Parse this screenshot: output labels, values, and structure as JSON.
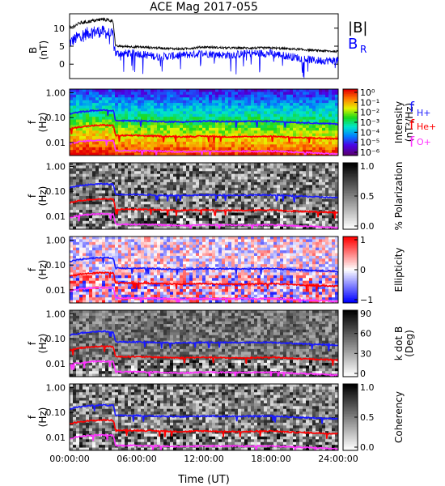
{
  "title": "ACE Mag 2017-055",
  "xaxis": {
    "label": "Time (UT)",
    "ticks": [
      "00:00:00",
      "06:00:00",
      "12:00:00",
      "18:00:00",
      "24:00:00"
    ],
    "hours": [
      0,
      6,
      12,
      18,
      24
    ]
  },
  "panel_b": {
    "ylabel_line1": "B",
    "ylabel_line2": "(nT)",
    "ticks": [
      "10",
      "5",
      "0"
    ],
    "legend_B": "|B|",
    "legend_BR_main": "B",
    "legend_BR_sub": "R",
    "colors": {
      "B": "#000000",
      "BR": "#0000ff"
    }
  },
  "freq_ylabel": {
    "line1": "f",
    "line2": "(Hz)"
  },
  "freq_ticks": [
    "1.00",
    "0.10",
    "0.01"
  ],
  "gyro_legend": [
    {
      "main": "f",
      "sub": "H+",
      "color": "#1a1aff"
    },
    {
      "main": "f",
      "sub": "He+",
      "color": "#ff0000"
    },
    {
      "main": "f",
      "sub": "O+",
      "color": "#ff33ff"
    }
  ],
  "spectro_panels": [
    {
      "key": "intensity",
      "scheme": "rainbow",
      "bar_ticks": [
        "10⁰",
        "10⁻¹",
        "10⁻²",
        "10⁻³",
        "10⁻⁴",
        "10⁻⁵",
        "10⁻⁶"
      ],
      "bar_label_1": "Intensity",
      "bar_label_2": "(nT²/Hz)"
    },
    {
      "key": "polarization",
      "scheme": "gray",
      "bar_ticks": [
        "1.0",
        "0.5",
        "0.0"
      ],
      "bar_label_1": "% Polarization",
      "bar_label_2": ""
    },
    {
      "key": "ellipticity",
      "scheme": "bwr",
      "bar_ticks": [
        "1",
        "0",
        "−1"
      ],
      "bar_label_1": "Ellipticity",
      "bar_label_2": ""
    },
    {
      "key": "kdotb",
      "scheme": "gray",
      "bar_ticks": [
        "90",
        "60",
        "30",
        "0"
      ],
      "bar_label_1": "k dot B",
      "bar_label_2": "(Deg)"
    },
    {
      "key": "coherency",
      "scheme": "gray",
      "bar_ticks": [
        "1.0",
        "0.5",
        "0.0"
      ],
      "bar_label_1": "Coherency",
      "bar_label_2": ""
    }
  ],
  "chart_data": {
    "type": "line",
    "title": "ACE Mag 2017-055",
    "xlabel": "Time (UT)",
    "xlim_hours": [
      0,
      24
    ],
    "b_panel": {
      "ylabel": "B (nT)",
      "ylim": [
        -4,
        14
      ],
      "series": [
        {
          "name": "|B|",
          "x_hours": [
            0,
            1,
            2,
            3,
            3.9,
            4.1,
            6,
            8,
            10,
            12,
            14,
            16,
            18,
            20,
            22,
            24
          ],
          "y": [
            10,
            11.5,
            12,
            12.5,
            12,
            5,
            4.8,
            4.5,
            4.2,
            4.8,
            4.5,
            4.5,
            4.5,
            4.2,
            3.8,
            3.5
          ]
        },
        {
          "name": "Bᵣ",
          "x_hours": [
            0,
            1,
            2,
            3,
            3.9,
            4.1,
            6,
            8,
            10,
            12,
            14,
            16,
            18,
            20,
            22,
            24
          ],
          "y": [
            6,
            8,
            9,
            9,
            8,
            3,
            3,
            2,
            2.5,
            3,
            2.5,
            3,
            3,
            2,
            1,
            1
          ]
        }
      ]
    },
    "gyrofrequency_hz": {
      "x_hours": [
        0,
        1,
        2,
        3,
        3.9,
        4.1,
        6,
        8,
        10,
        12,
        14,
        16,
        18,
        20,
        22,
        24
      ],
      "fH": [
        0.14,
        0.17,
        0.19,
        0.2,
        0.19,
        0.075,
        0.075,
        0.07,
        0.067,
        0.072,
        0.07,
        0.07,
        0.072,
        0.065,
        0.06,
        0.055
      ],
      "fHe": [
        0.035,
        0.043,
        0.047,
        0.05,
        0.048,
        0.019,
        0.019,
        0.018,
        0.017,
        0.018,
        0.017,
        0.017,
        0.018,
        0.016,
        0.015,
        0.014
      ],
      "fO": [
        0.009,
        0.011,
        0.012,
        0.0125,
        0.012,
        0.0047,
        0.0047,
        0.0045,
        0.0042,
        0.0045,
        0.0044,
        0.0044,
        0.0045,
        0.0041,
        0.0038,
        0.0034
      ]
    },
    "freq_ylim_hz": [
      0.003,
      1.4
    ],
    "freq_scale": "log"
  }
}
